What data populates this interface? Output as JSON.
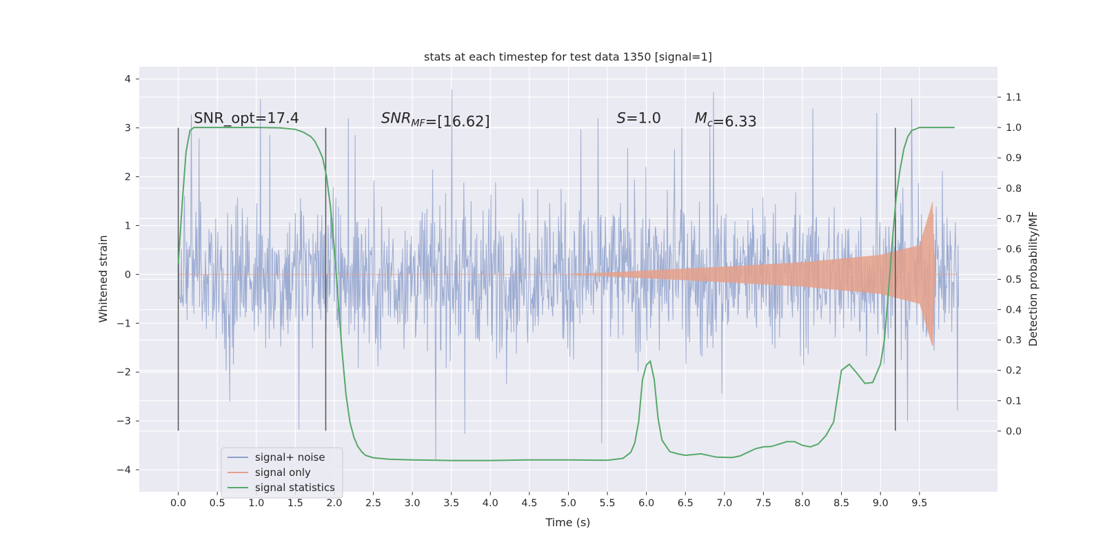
{
  "chart_data": {
    "type": "line",
    "title": "stats at each timestep for test data 1350 [signal=1]",
    "xlabel": "Time (s)",
    "ylabel": "Whitened strain",
    "y2label": "Detection probability/MF",
    "xlim": [
      -0.5,
      10.5
    ],
    "ylim": [
      -4.45,
      4.25
    ],
    "y2lim": [
      -0.2,
      1.2
    ],
    "x_ticks": [
      "0.0",
      "0.5",
      "1.0",
      "1.5",
      "2.0",
      "2.5",
      "3.0",
      "3.5",
      "4.0",
      "4.5",
      "5.0",
      "5.5",
      "6.0",
      "6.5",
      "7.0",
      "7.5",
      "8.0",
      "8.5",
      "9.0",
      "9.5"
    ],
    "y_ticks": [
      "−4",
      "−3",
      "−2",
      "−1",
      "0",
      "1",
      "2",
      "3",
      "4"
    ],
    "y2_ticks": [
      "0.0",
      "0.1",
      "0.2",
      "0.3",
      "0.4",
      "0.5",
      "0.6",
      "0.7",
      "0.8",
      "0.9",
      "1.0",
      "1.1"
    ],
    "grid": true,
    "legend_position": "lower-left",
    "vlines": {
      "x": [
        0.0,
        1.89,
        9.19
      ],
      "y_range": [
        -3.2,
        3.0
      ],
      "color": "#555555"
    },
    "annotations": [
      {
        "parts": [
          {
            "t": "SNR_opt=17.4",
            "italic": false
          }
        ],
        "x": 0.2,
        "y": 3.1
      },
      {
        "parts": [
          {
            "t": "SNR",
            "italic": true
          },
          {
            "t": "MF",
            "italic": true,
            "sub": true
          },
          {
            "t": "=[16.62]",
            "italic": false
          }
        ],
        "x": 2.6,
        "y": 3.1
      },
      {
        "parts": [
          {
            "t": "S",
            "italic": true
          },
          {
            "t": "=1.0",
            "italic": false
          }
        ],
        "x": 5.62,
        "y": 3.1
      },
      {
        "parts": [
          {
            "t": "M",
            "italic": true
          },
          {
            "t": "c",
            "italic": true,
            "sub": true
          },
          {
            "t": "=6.33",
            "italic": false
          }
        ],
        "x": 6.62,
        "y": 3.1
      }
    ],
    "series": [
      {
        "name": "signal+ noise",
        "color": "#8da0cb",
        "axis": "left",
        "x_range": [
          0.0,
          10.0
        ],
        "band_typical": [
          -1.3,
          1.15
        ],
        "peak_range": [
          -4.0,
          3.85
        ]
      },
      {
        "name": "signal only",
        "color": "#e5a08a",
        "axis": "left",
        "x_range": [
          0.0,
          10.0
        ],
        "amplitude_envelope": [
          {
            "x": 5.0,
            "y": 0.0
          },
          {
            "x": 6.0,
            "y": 0.08
          },
          {
            "x": 7.0,
            "y": 0.16
          },
          {
            "x": 8.0,
            "y": 0.25
          },
          {
            "x": 9.0,
            "y": 0.4
          },
          {
            "x": 9.5,
            "y": 0.6
          },
          {
            "x": 9.67,
            "y": 1.5
          },
          {
            "x": 9.7,
            "y": 0.0
          }
        ]
      },
      {
        "name": "signal statistics",
        "color": "#55a868",
        "axis": "right",
        "x": [
          0.0,
          0.05,
          0.1,
          0.15,
          0.2,
          0.3,
          0.5,
          1.0,
          1.3,
          1.5,
          1.6,
          1.7,
          1.75,
          1.8,
          1.85,
          1.9,
          1.95,
          2.0,
          2.05,
          2.1,
          2.15,
          2.2,
          2.25,
          2.3,
          2.35,
          2.4,
          2.5,
          2.7,
          3.0,
          3.5,
          4.0,
          4.5,
          5.0,
          5.5,
          5.7,
          5.8,
          5.85,
          5.9,
          5.95,
          6.0,
          6.05,
          6.1,
          6.15,
          6.2,
          6.3,
          6.4,
          6.5,
          6.7,
          6.9,
          7.1,
          7.2,
          7.3,
          7.4,
          7.5,
          7.6,
          7.7,
          7.8,
          7.9,
          8.0,
          8.1,
          8.2,
          8.3,
          8.4,
          8.5,
          8.6,
          8.7,
          8.8,
          8.9,
          9.0,
          9.05,
          9.1,
          9.15,
          9.2,
          9.25,
          9.3,
          9.35,
          9.4,
          9.5,
          9.6,
          9.7,
          9.95
        ],
        "values": [
          0.55,
          0.75,
          0.92,
          0.99,
          1.0,
          1.0,
          1.0,
          1.0,
          0.999,
          0.994,
          0.985,
          0.97,
          0.955,
          0.93,
          0.9,
          0.84,
          0.74,
          0.6,
          0.43,
          0.26,
          0.12,
          0.03,
          -0.02,
          -0.05,
          -0.068,
          -0.08,
          -0.088,
          -0.093,
          -0.095,
          -0.097,
          -0.097,
          -0.095,
          -0.095,
          -0.096,
          -0.09,
          -0.07,
          -0.04,
          0.03,
          0.17,
          0.218,
          0.23,
          0.17,
          0.04,
          -0.03,
          -0.068,
          -0.075,
          -0.08,
          -0.075,
          -0.086,
          -0.087,
          -0.082,
          -0.07,
          -0.058,
          -0.052,
          -0.051,
          -0.043,
          -0.035,
          -0.035,
          -0.047,
          -0.052,
          -0.043,
          -0.015,
          0.03,
          0.2,
          0.22,
          0.19,
          0.157,
          0.16,
          0.22,
          0.3,
          0.45,
          0.62,
          0.77,
          0.86,
          0.93,
          0.97,
          0.99,
          1.0,
          1.0,
          1.0,
          1.0
        ]
      }
    ]
  }
}
